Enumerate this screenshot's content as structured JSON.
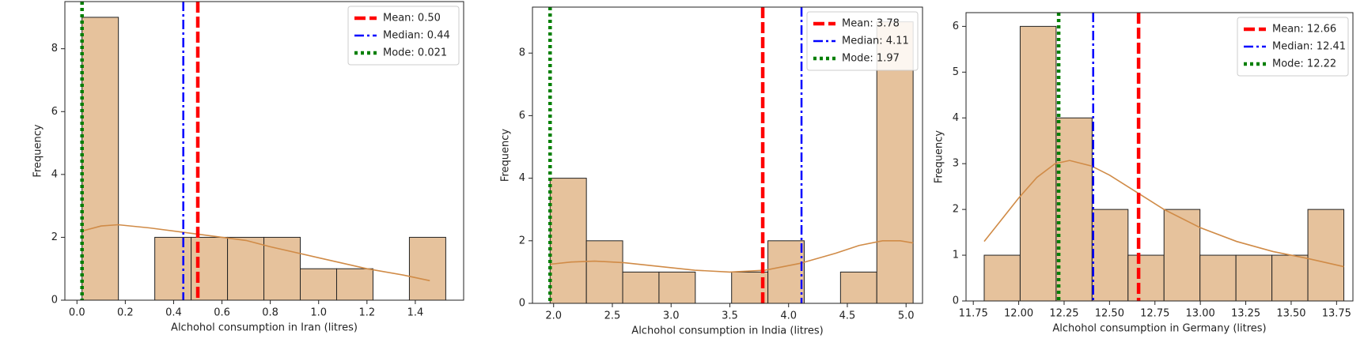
{
  "chart_data": [
    {
      "type": "histogram",
      "xlabel": "Alchohol consumption in Iran (litres)",
      "ylabel": "Frequency",
      "bins": [
        0.021,
        0.1715,
        0.322,
        0.4725,
        0.623,
        0.7735,
        0.924,
        1.0745,
        1.225,
        1.3755,
        1.526
      ],
      "values": [
        9,
        0,
        2,
        2,
        2,
        2,
        1,
        1,
        0,
        2
      ],
      "color": "#e6c29c",
      "edgecolor": "#222222",
      "kde": {
        "x": [
          0.021,
          0.1,
          0.17,
          0.3,
          0.5,
          0.7,
          0.8,
          1.0,
          1.2,
          1.35,
          1.46
        ],
        "values": [
          2.2,
          2.36,
          2.4,
          2.3,
          2.1,
          1.9,
          1.7,
          1.35,
          1.0,
          0.8,
          0.62
        ],
        "color": "#d08b47"
      },
      "lines": [
        {
          "name": "Mean: 0.50",
          "value": 0.5,
          "color": "#ff0000",
          "style": "dashed"
        },
        {
          "name": "Median: 0.44",
          "value": 0.44,
          "color": "#0000ff",
          "style": "dashdot"
        },
        {
          "name": "Mode: 0.021",
          "value": 0.021,
          "color": "#007f00",
          "style": "dotted"
        }
      ],
      "xlim": [
        -0.05,
        1.6
      ],
      "ylim": [
        0,
        9.5
      ],
      "xticks": [
        {
          "value": 0,
          "label": "0.0"
        },
        0.2,
        0.4,
        0.6,
        0.8,
        {
          "value": 1,
          "label": "1.0"
        },
        1.2,
        1.4
      ],
      "yticks": [
        0,
        2,
        4,
        6,
        8
      ],
      "legend": "upper right"
    },
    {
      "type": "histogram",
      "xlabel": "Alchohol consumption in India (litres)",
      "ylabel": "Frequency",
      "bins": [
        1.97,
        2.279,
        2.588,
        2.897,
        3.206,
        3.515,
        3.824,
        4.133,
        4.442,
        4.751,
        5.06
      ],
      "values": [
        4,
        2,
        1,
        1,
        0,
        1,
        2,
        0,
        1,
        9
      ],
      "color": "#e6c29c",
      "edgecolor": "#222222",
      "kde": {
        "x": [
          1.97,
          2.15,
          2.35,
          2.6,
          2.9,
          3.2,
          3.5,
          3.8,
          4.1,
          4.4,
          4.6,
          4.8,
          4.95,
          5.06
        ],
        "values": [
          1.25,
          1.32,
          1.35,
          1.3,
          1.18,
          1.06,
          1.0,
          1.06,
          1.28,
          1.6,
          1.85,
          2.0,
          2.0,
          1.93
        ],
        "color": "#d08b47"
      },
      "lines": [
        {
          "name": "Mean: 3.78",
          "value": 3.78,
          "color": "#ff0000",
          "style": "dashed"
        },
        {
          "name": "Median: 4.11",
          "value": 4.11,
          "color": "#0000ff",
          "style": "dashdot"
        },
        {
          "name": "Mode: 1.97",
          "value": 1.97,
          "color": "#007f00",
          "style": "dotted"
        }
      ],
      "xlim": [
        1.82,
        5.14
      ],
      "ylim": [
        0,
        9.47
      ],
      "xticks": [
        {
          "value": 2,
          "label": "2.0"
        },
        2.5,
        {
          "value": 3,
          "label": "3.0"
        },
        3.5,
        {
          "value": 4,
          "label": "4.0"
        },
        4.5,
        {
          "value": 5,
          "label": "5.0"
        }
      ],
      "yticks": [
        0,
        2,
        4,
        6,
        8
      ],
      "legend": "upper right"
    },
    {
      "type": "histogram",
      "xlabel": "Alchohol consumption in Germany (litres)",
      "ylabel": "Frequency",
      "bins": [
        11.81,
        12.008,
        12.206,
        12.404,
        12.602,
        12.8,
        12.998,
        13.196,
        13.394,
        13.592,
        13.79
      ],
      "values": [
        1,
        6,
        4,
        2,
        1,
        2,
        1,
        1,
        1,
        2
      ],
      "color": "#e6c29c",
      "edgecolor": "#222222",
      "kde": {
        "x": [
          11.81,
          11.9,
          12.0,
          12.1,
          12.2,
          12.28,
          12.4,
          12.5,
          12.6,
          12.8,
          13.0,
          13.2,
          13.4,
          13.6,
          13.79
        ],
        "values": [
          1.3,
          1.75,
          2.25,
          2.7,
          3.0,
          3.07,
          2.95,
          2.75,
          2.5,
          2.0,
          1.6,
          1.3,
          1.08,
          0.92,
          0.75
        ],
        "color": "#d08b47"
      },
      "lines": [
        {
          "name": "Mean: 12.66",
          "value": 12.66,
          "color": "#ff0000",
          "style": "dashed"
        },
        {
          "name": "Median: 12.41",
          "value": 12.41,
          "color": "#0000ff",
          "style": "dashdot"
        },
        {
          "name": "Mode: 12.22",
          "value": 12.22,
          "color": "#007f00",
          "style": "dotted"
        }
      ],
      "xlim": [
        11.71,
        13.84
      ],
      "ylim": [
        0,
        6.3
      ],
      "xticks": [
        11.75,
        {
          "value": 12,
          "label": "12.00"
        },
        12.25,
        {
          "value": 12.5,
          "label": "12.50"
        },
        12.75,
        {
          "value": 13,
          "label": "13.00"
        },
        13.25,
        {
          "value": 13.5,
          "label": "13.50"
        },
        13.75
      ],
      "yticks": [
        0,
        1,
        2,
        3,
        4,
        5,
        6
      ],
      "legend": "upper right"
    }
  ]
}
